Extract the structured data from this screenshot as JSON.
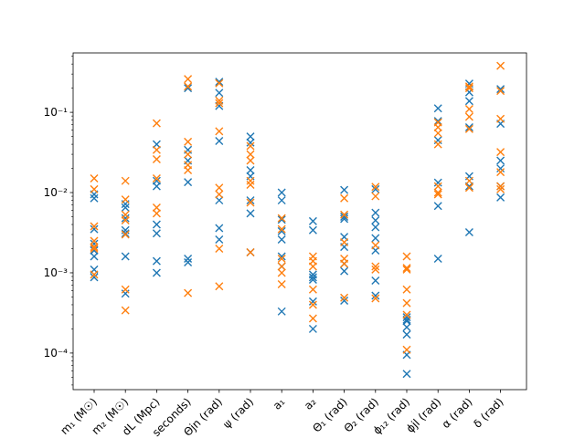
{
  "chart_data": {
    "type": "scatter",
    "title": "",
    "xlabel": "",
    "ylabel": "",
    "yscale": "log",
    "ylim": [
      3.5e-05,
      0.55
    ],
    "grid": false,
    "legend": "none",
    "y_ticks": [
      {
        "value": 0.0001,
        "label": "10⁻⁴"
      },
      {
        "value": 0.001,
        "label": "10⁻³"
      },
      {
        "value": 0.01,
        "label": "10⁻²"
      },
      {
        "value": 0.1,
        "label": "10⁻¹"
      }
    ],
    "categories": [
      "m₁ (M☉)",
      "m₂ (M☉)",
      "dL (Mpc)",
      "seconds)",
      "Θjn (rad)",
      "ψ (rad)",
      "a₁",
      "a₂",
      "Θ₁ (rad)",
      "Θ₂ (rad)",
      "ɸ₁₂ (rad)",
      "ɸjl (rad)",
      "α (rad)",
      "δ (rad)"
    ],
    "series": [
      {
        "color": "#1f77b4",
        "values": [
          [
            0.0085,
            0.0095,
            0.0035,
            0.0016,
            0.0011,
            0.00088,
            0.0023,
            0.0019
          ],
          [
            0.0072,
            0.0065,
            0.0048,
            0.0031,
            0.0016,
            0.00055,
            0.0034
          ],
          [
            0.04,
            0.012,
            0.004,
            0.0031,
            0.0014,
            0.001,
            0.014
          ],
          [
            0.2,
            0.034,
            0.025,
            0.0135,
            0.0015,
            0.00135
          ],
          [
            0.24,
            0.175,
            0.12,
            0.044,
            0.008,
            0.0036,
            0.0026
          ],
          [
            0.05,
            0.042,
            0.019,
            0.016,
            0.008,
            0.0055,
            0.0018
          ],
          [
            0.01,
            0.008,
            0.0046,
            0.0026,
            0.0016,
            0.0012,
            0.00033,
            0.0033
          ],
          [
            0.0044,
            0.0034,
            0.00095,
            0.00088,
            0.00082,
            0.00044,
            0.0002
          ],
          [
            0.0108,
            0.005,
            0.0047,
            0.0028,
            0.0021,
            0.0013,
            0.00105,
            0.00045
          ],
          [
            0.011,
            0.0056,
            0.0045,
            0.0037,
            0.0027,
            0.0019,
            0.0008,
            0.00052
          ],
          [
            0.00028,
            0.00025,
            0.00021,
            0.00017,
            9.5e-05,
            5.5e-05,
            0.00026
          ],
          [
            0.112,
            0.078,
            0.045,
            0.0133,
            0.0068,
            0.0015
          ],
          [
            0.228,
            0.178,
            0.138,
            0.065,
            0.016,
            0.012,
            0.0032
          ],
          [
            0.195,
            0.072,
            0.025,
            0.02,
            0.012,
            0.0087
          ]
        ]
      },
      {
        "color": "#ff7f0e",
        "values": [
          [
            0.015,
            0.011,
            0.0038,
            0.0025,
            0.0021,
            0.002,
            0.00095
          ],
          [
            0.014,
            0.0082,
            0.0053,
            0.003,
            0.00062,
            0.00034,
            0.0045
          ],
          [
            0.073,
            0.034,
            0.026,
            0.015,
            0.0065,
            0.0055
          ],
          [
            0.26,
            0.21,
            0.043,
            0.03,
            0.022,
            0.019,
            0.00056
          ],
          [
            0.23,
            0.14,
            0.13,
            0.058,
            0.0115,
            0.0095,
            0.002,
            0.00068
          ],
          [
            0.038,
            0.03,
            0.025,
            0.014,
            0.0125,
            0.0075,
            0.0018
          ],
          [
            0.0048,
            0.0035,
            0.0015,
            0.0012,
            0.001,
            0.00072
          ],
          [
            0.0016,
            0.0014,
            0.0012,
            0.00062,
            0.0004,
            0.00027
          ],
          [
            0.0085,
            0.0053,
            0.0024,
            0.0015,
            0.0013,
            0.00049
          ],
          [
            0.0118,
            0.009,
            0.0022,
            0.0012,
            0.0011,
            0.00048
          ],
          [
            0.0016,
            0.00115,
            0.0011,
            0.00062,
            0.00042,
            0.0003,
            0.00011
          ],
          [
            0.075,
            0.065,
            0.055,
            0.04,
            0.012,
            0.01,
            0.0095
          ],
          [
            0.21,
            0.2,
            0.11,
            0.088,
            0.062,
            0.014,
            0.0115
          ],
          [
            0.38,
            0.185,
            0.083,
            0.032,
            0.018,
            0.012,
            0.011
          ]
        ]
      }
    ]
  }
}
